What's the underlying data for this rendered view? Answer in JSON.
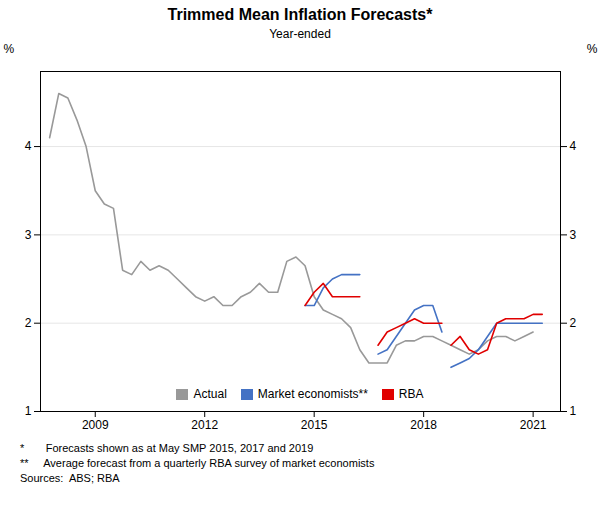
{
  "chart_data": {
    "type": "line",
    "title": "Trimmed Mean Inflation Forecasts*",
    "subtitle": "Year-ended",
    "ylabel": "%",
    "y2label": "%",
    "xlim": [
      2007.5,
      2021.75
    ],
    "xticks": [
      2009,
      2012,
      2015,
      2018,
      2021
    ],
    "ylim": [
      1,
      4.85
    ],
    "yticks": [
      1,
      2,
      3,
      4
    ],
    "y2lim": [
      1,
      4.85
    ],
    "y2ticks": [
      1,
      2,
      3,
      4
    ],
    "grid": true,
    "legend": "lower center",
    "footnotes": [
      "*       Forecasts shown as at May SMP 2015, 2017 and 2019",
      "**     Average forecast from a quarterly RBA survey of market economists",
      "Sources:  ABS; RBA"
    ],
    "series": [
      {
        "name": "Actual",
        "color": "#999999",
        "x": [
          2007.75,
          2008.0,
          2008.25,
          2008.5,
          2008.75,
          2009.0,
          2009.25,
          2009.5,
          2009.75,
          2010.0,
          2010.25,
          2010.5,
          2010.75,
          2011.0,
          2011.25,
          2011.5,
          2011.75,
          2012.0,
          2012.25,
          2012.5,
          2012.75,
          2013.0,
          2013.25,
          2013.5,
          2013.75,
          2014.0,
          2014.25,
          2014.5,
          2014.75,
          2015.0,
          2015.25,
          2015.5,
          2015.75,
          2016.0,
          2016.25,
          2016.5,
          2016.75,
          2017.0,
          2017.25,
          2017.5,
          2017.75,
          2018.0,
          2018.25,
          2018.5,
          2018.75,
          2019.0,
          2019.25,
          2019.5,
          2019.75,
          2020.0,
          2020.25,
          2020.5,
          2020.75,
          2021.0
        ],
        "values": [
          4.1,
          4.6,
          4.55,
          4.3,
          4.0,
          3.5,
          3.35,
          3.3,
          2.6,
          2.55,
          2.7,
          2.6,
          2.65,
          2.6,
          2.5,
          2.4,
          2.3,
          2.25,
          2.3,
          2.2,
          2.2,
          2.3,
          2.35,
          2.45,
          2.35,
          2.35,
          2.7,
          2.75,
          2.65,
          2.3,
          2.15,
          2.1,
          2.05,
          1.95,
          1.7,
          1.55,
          1.55,
          1.55,
          1.75,
          1.8,
          1.8,
          1.85,
          1.85,
          1.8,
          1.75,
          1.7,
          1.65,
          1.7,
          1.8,
          1.85,
          1.85,
          1.8,
          1.85,
          1.9
        ]
      },
      {
        "name": "Market economists**",
        "color": "#4472c4",
        "x": [
          2014.75,
          2015.0,
          2015.25,
          2015.5,
          2015.75,
          2016.0,
          2016.25,
          null,
          2016.75,
          2017.0,
          2017.25,
          2017.5,
          2017.75,
          2018.0,
          2018.25,
          2018.5,
          null,
          2018.75,
          2019.0,
          2019.25,
          2019.5,
          2019.75,
          2020.0,
          2020.25,
          2020.5,
          2020.75,
          2021.0,
          2021.25
        ],
        "values": [
          2.2,
          2.2,
          2.4,
          2.5,
          2.55,
          2.55,
          2.55,
          null,
          1.65,
          1.7,
          1.85,
          2.0,
          2.15,
          2.2,
          2.2,
          1.9,
          null,
          1.5,
          1.55,
          1.6,
          1.7,
          1.85,
          2.0,
          2.0,
          2.0,
          2.0,
          2.0,
          2.0
        ]
      },
      {
        "name": "RBA",
        "color": "#e00000",
        "x": [
          2014.75,
          2015.0,
          2015.25,
          2015.5,
          2015.75,
          2016.0,
          2016.25,
          null,
          2016.75,
          2017.0,
          2017.25,
          2017.5,
          2017.75,
          2018.0,
          2018.25,
          2018.5,
          null,
          2018.75,
          2019.0,
          2019.25,
          2019.5,
          2019.75,
          2020.0,
          2020.25,
          2020.5,
          2020.75,
          2021.0,
          2021.25
        ],
        "values": [
          2.2,
          2.35,
          2.45,
          2.3,
          2.3,
          2.3,
          2.3,
          null,
          1.75,
          1.9,
          1.95,
          2.0,
          2.05,
          2.0,
          2.0,
          2.0,
          null,
          1.75,
          1.85,
          1.7,
          1.65,
          1.7,
          2.0,
          2.05,
          2.05,
          2.05,
          2.1,
          2.1
        ]
      }
    ]
  }
}
